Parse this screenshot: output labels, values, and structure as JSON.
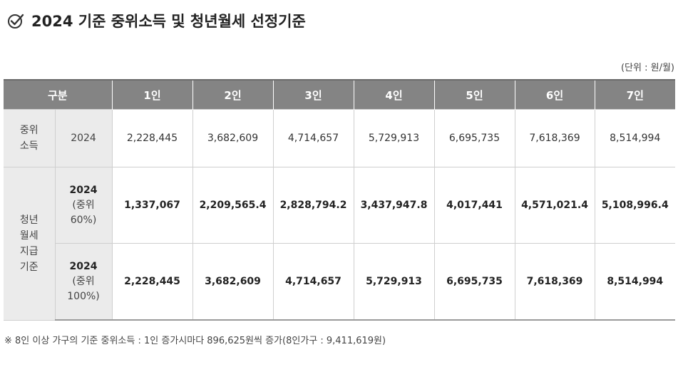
{
  "title": "2024 기준 중위소득 및 청년월세 선정기준",
  "icons": {
    "title_icon": "check-circle-icon"
  },
  "unit_note": "(단위 : 원/월)",
  "table": {
    "header": {
      "category": "구분",
      "columns": [
        "1인",
        "2인",
        "3인",
        "4인",
        "5인",
        "6인",
        "7인"
      ]
    },
    "median_income": {
      "group_label_line1": "중위",
      "group_label_line2": "소득",
      "year": "2024",
      "values": [
        "2,228,445",
        "3,682,609",
        "4,714,657",
        "5,729,913",
        "6,695,735",
        "7,618,369",
        "8,514,994"
      ]
    },
    "youth_rent": {
      "group_label_lines": [
        "청년",
        "월세",
        "지급",
        "기준"
      ],
      "rows": [
        {
          "year": "2024",
          "sub_line1": "(중위",
          "sub_line2": "60%)",
          "values": [
            "1,337,067",
            "2,209,565.4",
            "2,828,794.2",
            "3,437,947.8",
            "4,017,441",
            "4,571,021.4",
            "5,108,996.4"
          ]
        },
        {
          "year": "2024",
          "sub_line1": "(중위",
          "sub_line2": "100%)",
          "values": [
            "2,228,445",
            "3,682,609",
            "4,714,657",
            "5,729,913",
            "6,695,735",
            "7,618,369",
            "8,514,994"
          ]
        }
      ]
    }
  },
  "footnote": "※ 8인 이상 가구의 기준 중위소득 : 1인 증가시마다 896,625원씩 증가(8인가구 : 9,411,619원)"
}
